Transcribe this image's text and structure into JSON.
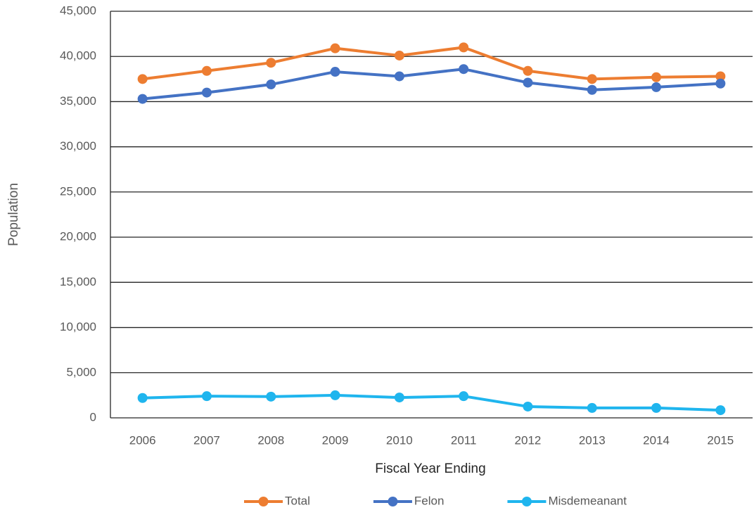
{
  "chart_data": {
    "type": "line",
    "x_label": "Fiscal Year Ending",
    "y_label": "Population",
    "categories": [
      "2006",
      "2007",
      "2008",
      "2009",
      "2010",
      "2011",
      "2012",
      "2013",
      "2014",
      "2015"
    ],
    "series": [
      {
        "name": "Total",
        "color": "#ed7d31",
        "values": [
          37500,
          38400,
          39300,
          40900,
          40100,
          41000,
          38400,
          37500,
          37700,
          37800
        ]
      },
      {
        "name": "Felon",
        "color": "#4472c4",
        "values": [
          35300,
          36000,
          36900,
          38300,
          37800,
          38600,
          37100,
          36300,
          36600,
          37000
        ]
      },
      {
        "name": "Misdemeanant",
        "color": "#1fb5ee",
        "values": [
          2200,
          2400,
          2350,
          2500,
          2250,
          2400,
          1250,
          1100,
          1100,
          850
        ]
      }
    ],
    "ylim": [
      0,
      45000
    ],
    "yticks": [
      0,
      {
        "value": 5000,
        "label": "5,000"
      },
      {
        "value": 10000,
        "label": "10,000"
      },
      {
        "value": 15000,
        "label": "15,000"
      },
      {
        "value": 20000,
        "label": "20,000"
      },
      {
        "value": 25000,
        "label": "25,000"
      },
      {
        "value": 30000,
        "label": "30,000"
      },
      {
        "value": 35000,
        "label": "35,000"
      },
      {
        "value": 40000,
        "label": "40,000"
      },
      {
        "value": 45000,
        "label": "45,000"
      }
    ],
    "grid": true,
    "legend": "bottom"
  }
}
